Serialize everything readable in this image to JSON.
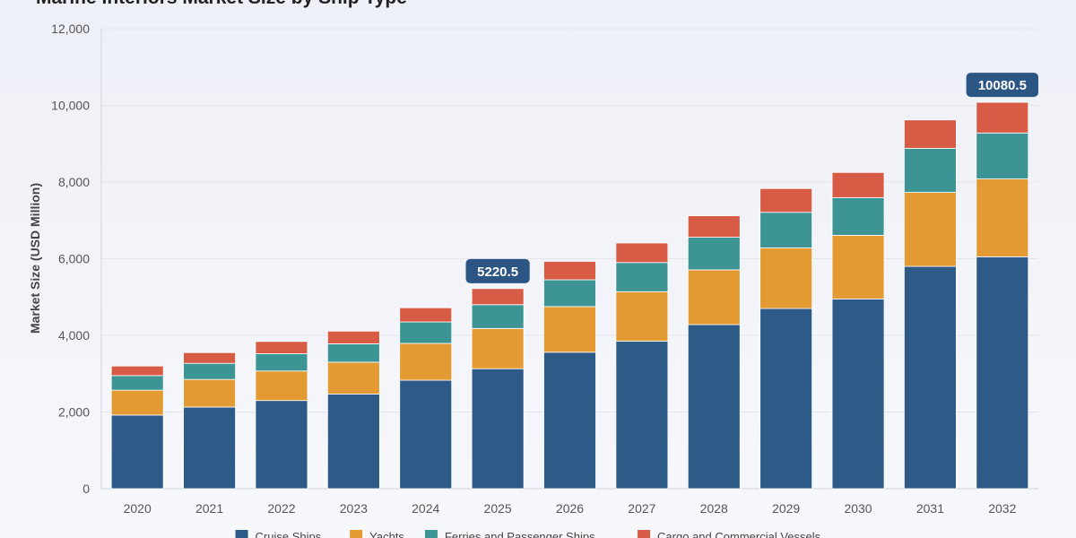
{
  "chart_data": {
    "type": "bar",
    "stacked": true,
    "title": "Marine Interiors Market Size by Ship Type",
    "xlabel": "",
    "ylabel": "Market Size (USD Million)",
    "ylim": [
      0,
      12000
    ],
    "yticks": [
      0,
      2000,
      4000,
      6000,
      8000,
      10000,
      12000
    ],
    "ytick_labels": [
      "0",
      "2,000",
      "4,000",
      "6,000",
      "8,000",
      "10,000",
      "12,000"
    ],
    "grid": true,
    "legend_position": "bottom",
    "categories": [
      "2020",
      "2021",
      "2022",
      "2023",
      "2024",
      "2025",
      "2026",
      "2027",
      "2028",
      "2029",
      "2030",
      "2031",
      "2032"
    ],
    "series": [
      {
        "name": "Cruise Ships",
        "color": "#2e5a87",
        "values": [
          1920,
          2130,
          2300,
          2470,
          2830,
          3130,
          3560,
          3850,
          4280,
          4700,
          4950,
          5800,
          6050
        ]
      },
      {
        "name": "Yachts",
        "color": "#e39a32",
        "values": [
          650,
          720,
          770,
          830,
          960,
          1050,
          1190,
          1290,
          1430,
          1580,
          1660,
          1930,
          2030
        ]
      },
      {
        "name": "Ferries and Passenger Ships",
        "color": "#3d9494",
        "values": [
          380,
          420,
          450,
          480,
          560,
          620,
          700,
          760,
          850,
          930,
          980,
          1150,
          1200
        ]
      },
      {
        "name": "Cargo and Commercial Vessels",
        "color": "#d85c45",
        "values": [
          250,
          280,
          320,
          330,
          370,
          420,
          480,
          510,
          560,
          620,
          660,
          740,
          800
        ]
      }
    ],
    "annotations": [
      {
        "category": "2025",
        "text": "5220.5"
      },
      {
        "category": "2032",
        "text": "10080.5"
      }
    ]
  },
  "colors": {
    "callout_bg": "#2b5683",
    "grid": "#e3e5ec",
    "axis": "#cfd3dc"
  }
}
